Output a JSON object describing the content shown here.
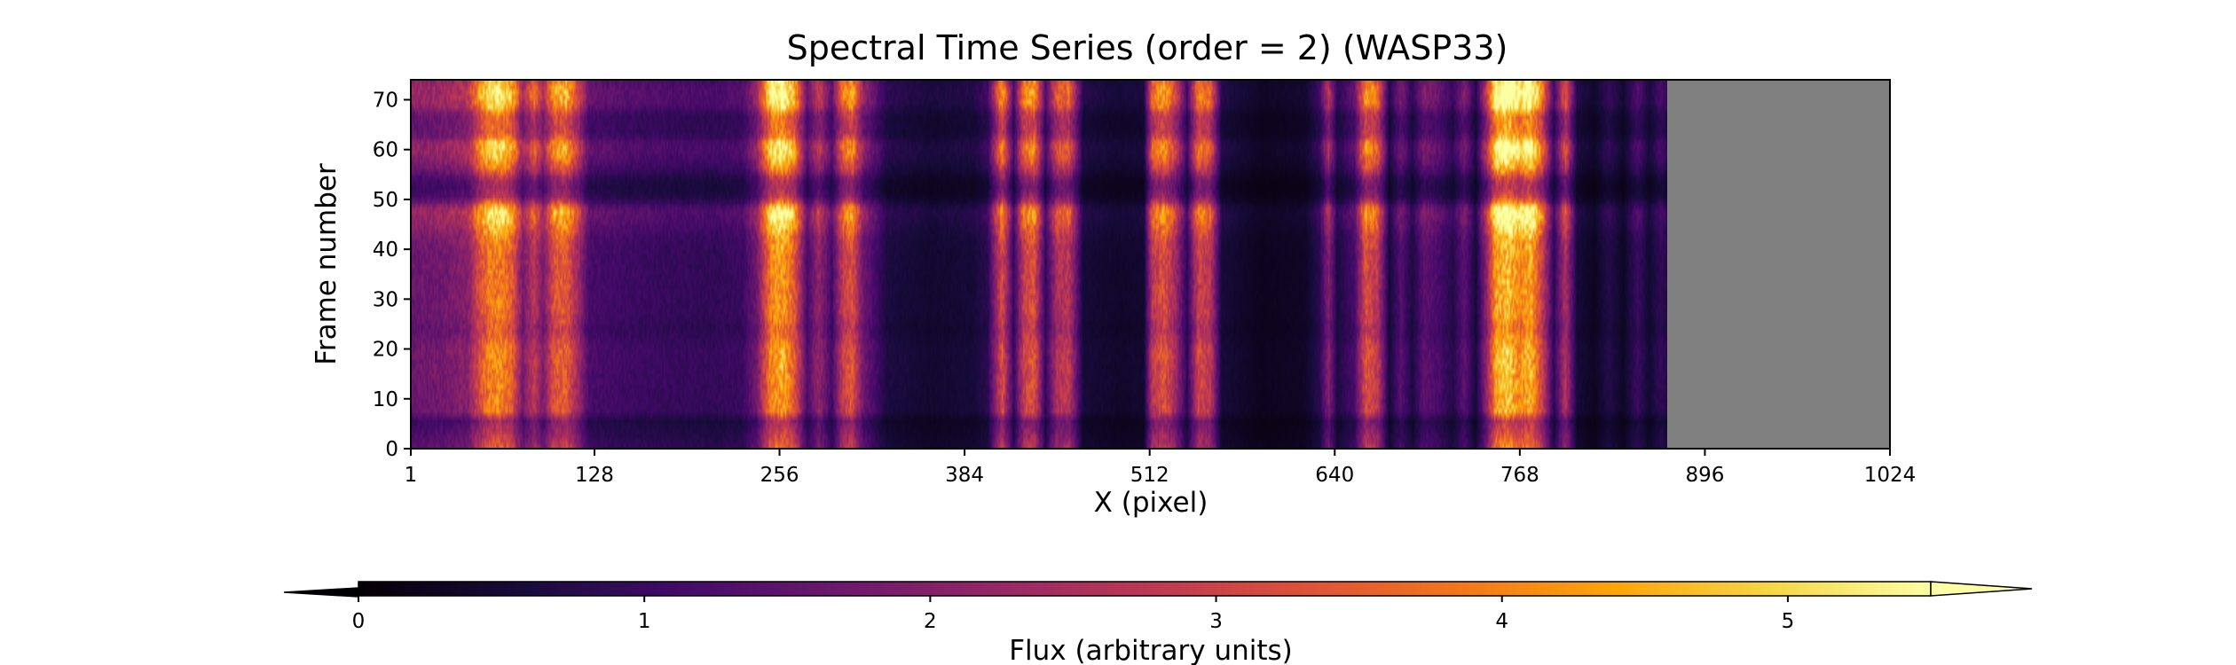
{
  "chart_data": {
    "type": "heatmap",
    "title": "Spectral Time Series (order = 2) (WASP33)",
    "xlabel": "X (pixel)",
    "ylabel": "Frame number",
    "xlim": [
      1,
      1024
    ],
    "ylim": [
      0,
      74
    ],
    "x_ticks": [
      1,
      128,
      256,
      384,
      512,
      640,
      768,
      896,
      1024
    ],
    "y_ticks": [
      0,
      10,
      20,
      30,
      40,
      50,
      60,
      70
    ],
    "valid_x_max": 870,
    "masked_region": {
      "x_range": [
        870,
        1024
      ],
      "color": "#808080"
    },
    "colormap": "inferno",
    "colorbar": {
      "label": "Flux (arbitrary units)",
      "range": [
        0,
        5.5
      ],
      "ticks": [
        0,
        1,
        2,
        3,
        4,
        5
      ],
      "extend": "both",
      "orientation": "horizontal"
    },
    "spectral_profile": [
      {
        "x": 1,
        "flux": 1.8
      },
      {
        "x": 20,
        "flux": 1.9
      },
      {
        "x": 40,
        "flux": 2.2
      },
      {
        "x": 48,
        "flux": 3.5
      },
      {
        "x": 55,
        "flux": 4.3
      },
      {
        "x": 62,
        "flux": 4.4
      },
      {
        "x": 70,
        "flux": 3.9
      },
      {
        "x": 78,
        "flux": 2.0
      },
      {
        "x": 86,
        "flux": 3.0
      },
      {
        "x": 92,
        "flux": 2.0
      },
      {
        "x": 100,
        "flux": 3.6
      },
      {
        "x": 108,
        "flux": 3.8
      },
      {
        "x": 116,
        "flux": 2.6
      },
      {
        "x": 124,
        "flux": 1.3
      },
      {
        "x": 150,
        "flux": 1.15
      },
      {
        "x": 180,
        "flux": 1.05
      },
      {
        "x": 210,
        "flux": 1.0
      },
      {
        "x": 230,
        "flux": 1.1
      },
      {
        "x": 240,
        "flux": 1.9
      },
      {
        "x": 250,
        "flux": 4.4
      },
      {
        "x": 258,
        "flux": 4.8
      },
      {
        "x": 266,
        "flux": 3.8
      },
      {
        "x": 275,
        "flux": 1.3
      },
      {
        "x": 283,
        "flux": 2.4
      },
      {
        "x": 292,
        "flux": 1.2
      },
      {
        "x": 300,
        "flux": 3.2
      },
      {
        "x": 306,
        "flux": 3.6
      },
      {
        "x": 314,
        "flux": 1.8
      },
      {
        "x": 320,
        "flux": 1.4
      },
      {
        "x": 330,
        "flux": 0.7
      },
      {
        "x": 360,
        "flux": 0.5
      },
      {
        "x": 390,
        "flux": 0.6
      },
      {
        "x": 400,
        "flux": 0.9
      },
      {
        "x": 410,
        "flux": 3.5
      },
      {
        "x": 418,
        "flux": 1.0
      },
      {
        "x": 425,
        "flux": 3.2
      },
      {
        "x": 432,
        "flux": 3.6
      },
      {
        "x": 440,
        "flux": 1.0
      },
      {
        "x": 448,
        "flux": 2.8
      },
      {
        "x": 456,
        "flux": 3.0
      },
      {
        "x": 466,
        "flux": 0.6
      },
      {
        "x": 490,
        "flux": 0.45
      },
      {
        "x": 508,
        "flux": 0.5
      },
      {
        "x": 514,
        "flux": 3.0
      },
      {
        "x": 522,
        "flux": 3.6
      },
      {
        "x": 530,
        "flux": 2.6
      },
      {
        "x": 538,
        "flux": 0.9
      },
      {
        "x": 546,
        "flux": 3.3
      },
      {
        "x": 554,
        "flux": 3.0
      },
      {
        "x": 562,
        "flux": 0.6
      },
      {
        "x": 590,
        "flux": 0.3
      },
      {
        "x": 620,
        "flux": 0.4
      },
      {
        "x": 630,
        "flux": 0.9
      },
      {
        "x": 636,
        "flux": 2.2
      },
      {
        "x": 642,
        "flux": 0.7
      },
      {
        "x": 654,
        "flux": 1.3
      },
      {
        "x": 662,
        "flux": 3.6
      },
      {
        "x": 670,
        "flux": 3.0
      },
      {
        "x": 678,
        "flux": 0.6
      },
      {
        "x": 686,
        "flux": 1.5
      },
      {
        "x": 694,
        "flux": 0.7
      },
      {
        "x": 702,
        "flux": 1.6
      },
      {
        "x": 712,
        "flux": 1.3
      },
      {
        "x": 722,
        "flux": 0.8
      },
      {
        "x": 730,
        "flux": 1.6
      },
      {
        "x": 738,
        "flux": 0.6
      },
      {
        "x": 746,
        "flux": 2.5
      },
      {
        "x": 752,
        "flux": 4.8
      },
      {
        "x": 760,
        "flux": 5.2
      },
      {
        "x": 768,
        "flux": 4.4
      },
      {
        "x": 776,
        "flux": 4.9
      },
      {
        "x": 784,
        "flux": 3.2
      },
      {
        "x": 792,
        "flux": 0.9
      },
      {
        "x": 800,
        "flux": 2.8
      },
      {
        "x": 808,
        "flux": 0.6
      },
      {
        "x": 820,
        "flux": 0.35
      },
      {
        "x": 830,
        "flux": 0.8
      },
      {
        "x": 840,
        "flux": 0.4
      },
      {
        "x": 850,
        "flux": 1.1
      },
      {
        "x": 858,
        "flux": 0.5
      },
      {
        "x": 866,
        "flux": 1.0
      },
      {
        "x": 870,
        "flux": 0.8
      }
    ],
    "temporal_modulation": [
      {
        "frame": 0,
        "factor": 0.8
      },
      {
        "frame": 6,
        "factor": 0.55
      },
      {
        "frame": 7,
        "factor": 0.9
      },
      {
        "frame": 20,
        "factor": 0.95
      },
      {
        "frame": 24,
        "factor": 0.8
      },
      {
        "frame": 27,
        "factor": 0.9
      },
      {
        "frame": 38,
        "factor": 0.9
      },
      {
        "frame": 42,
        "factor": 0.95
      },
      {
        "frame": 46,
        "factor": 1.2
      },
      {
        "frame": 48,
        "factor": 1.25
      },
      {
        "frame": 50,
        "factor": 0.7
      },
      {
        "frame": 52,
        "factor": 0.55
      },
      {
        "frame": 54,
        "factor": 0.6
      },
      {
        "frame": 56,
        "factor": 0.9
      },
      {
        "frame": 59,
        "factor": 1.15
      },
      {
        "frame": 61,
        "factor": 1.2
      },
      {
        "frame": 63,
        "factor": 0.85
      },
      {
        "frame": 67,
        "factor": 0.85
      },
      {
        "frame": 69,
        "factor": 1.2
      },
      {
        "frame": 72,
        "factor": 1.25
      },
      {
        "frame": 74,
        "factor": 1.1
      }
    ]
  }
}
